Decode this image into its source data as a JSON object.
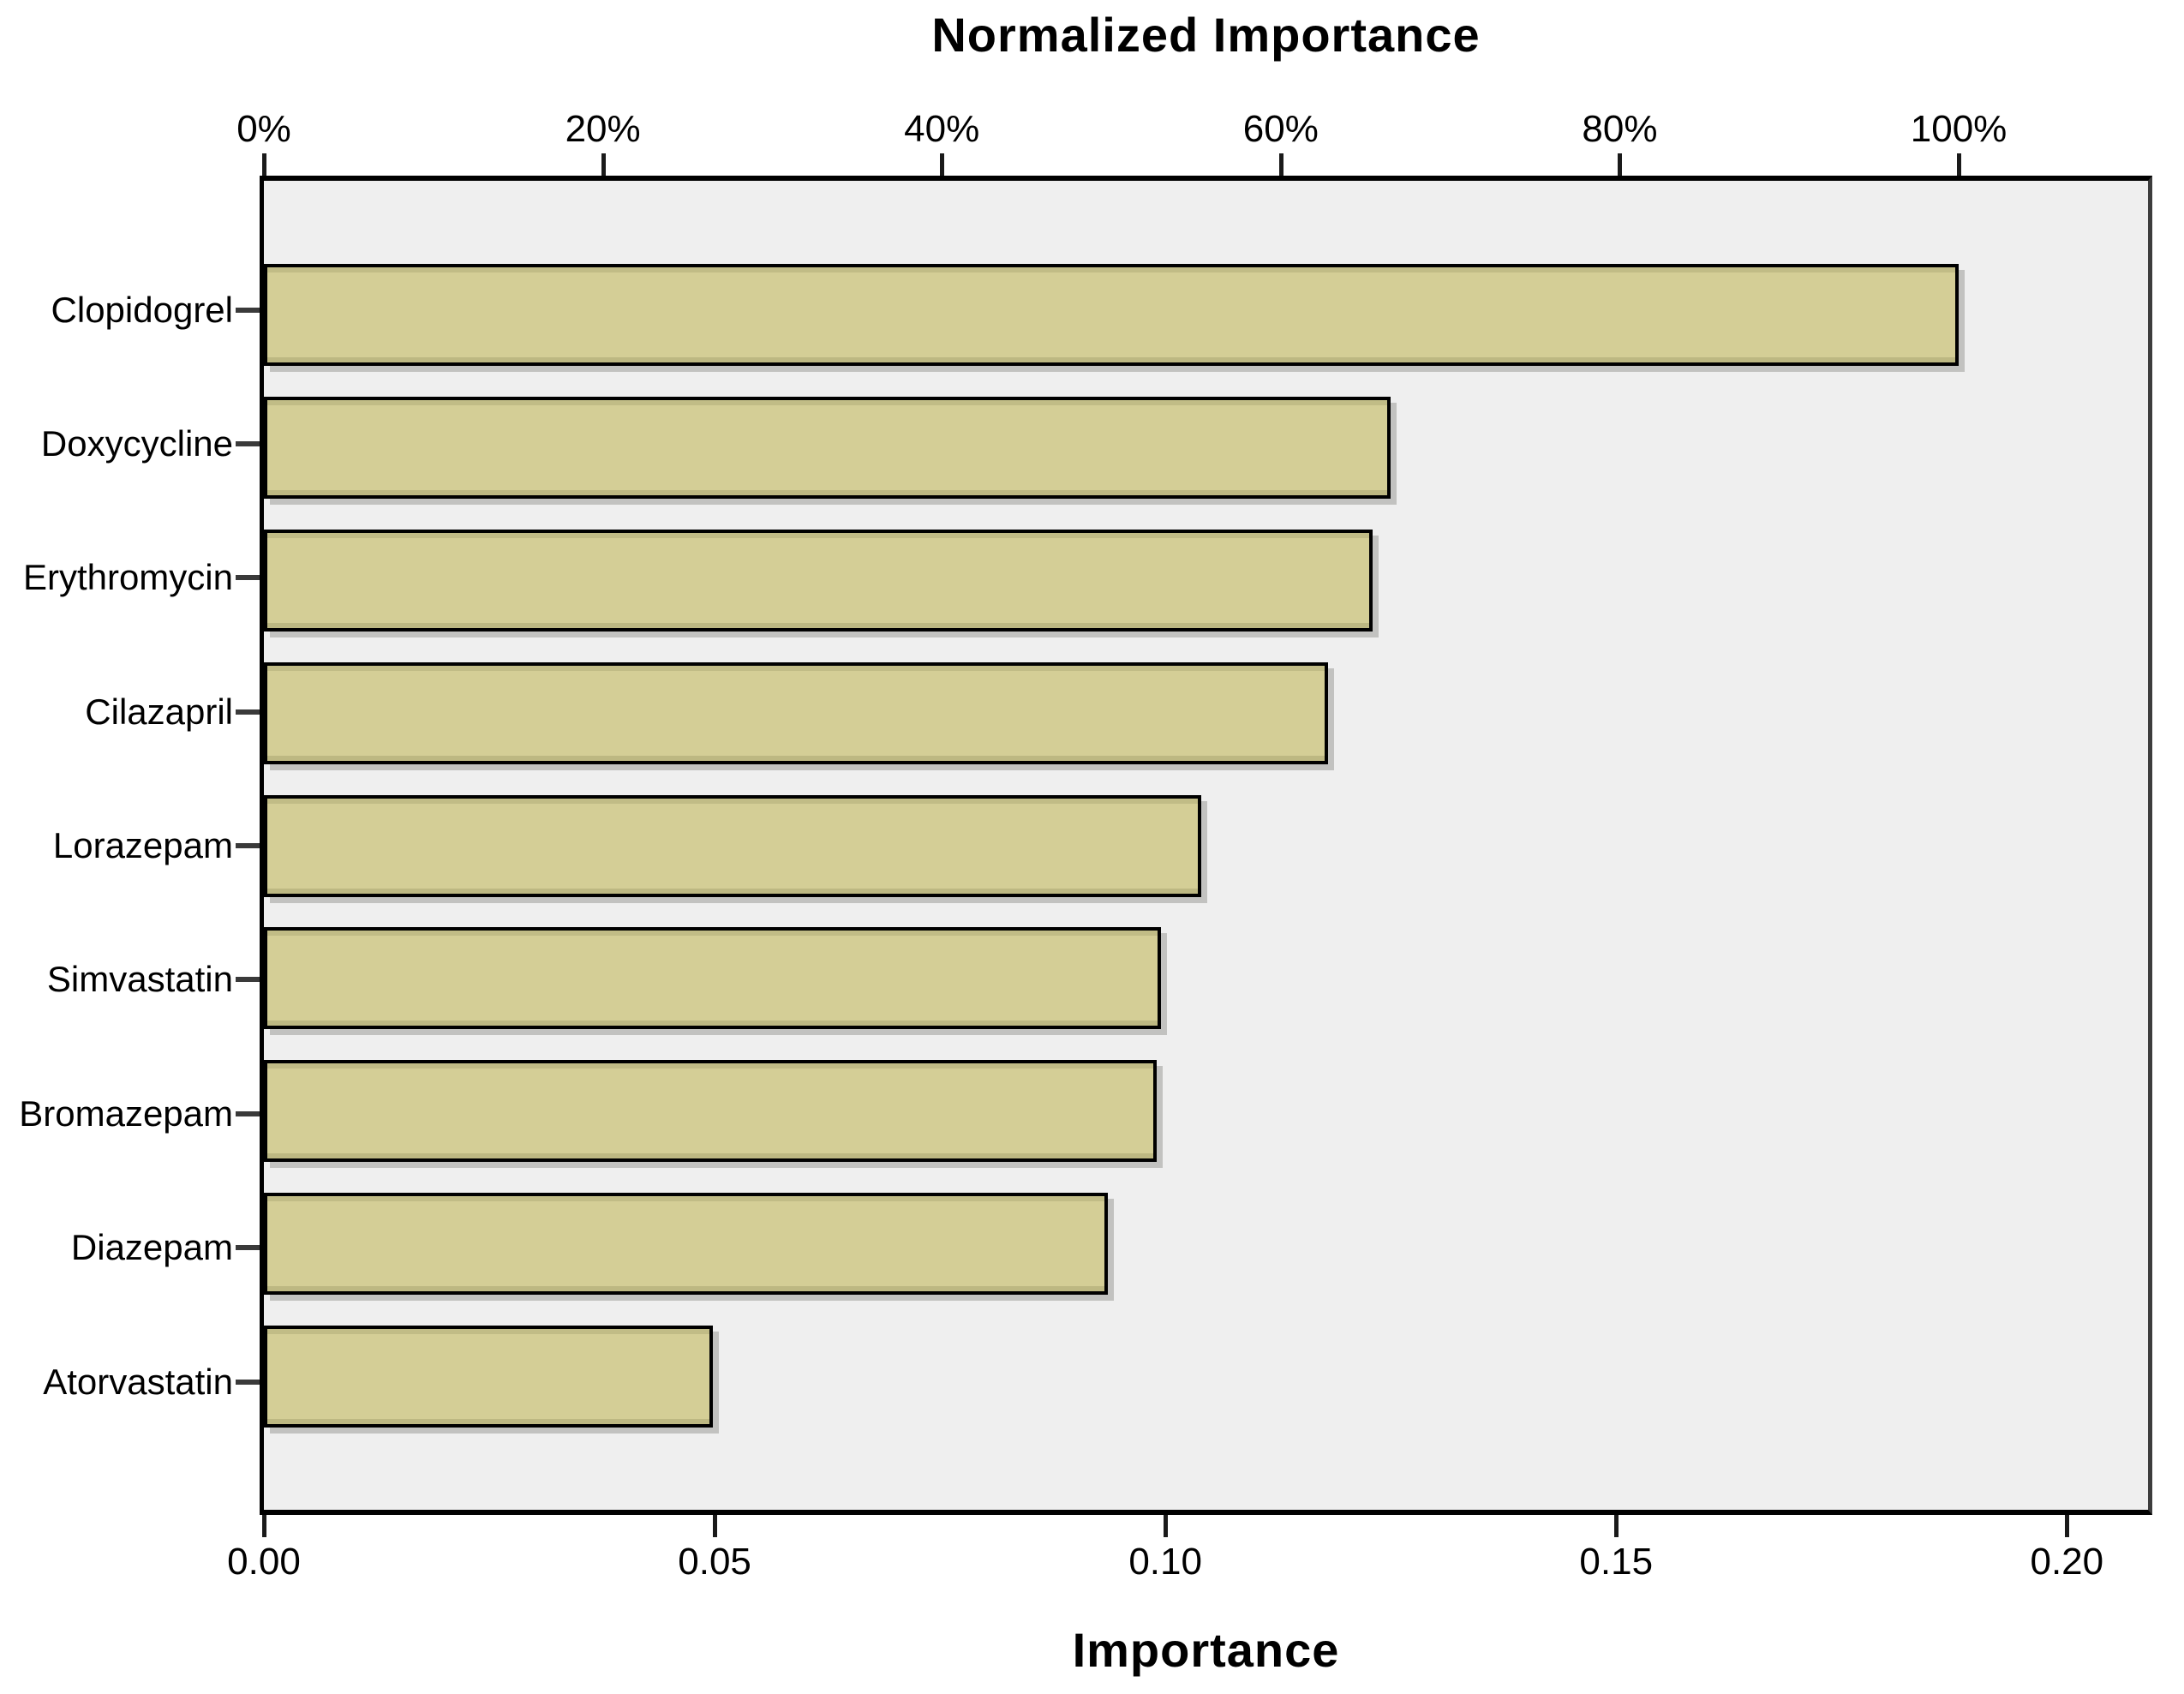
{
  "chart_data": {
    "type": "bar",
    "orientation": "horizontal",
    "title": "Normalized Importance",
    "xlabel": "Importance",
    "categories": [
      "Clopidogrel",
      "Doxycycline",
      "Erythromycin",
      "Cilazapril",
      "Lorazepam",
      "Simvastatin",
      "Bromazepam",
      "Diazepam",
      "Atorvastatin"
    ],
    "values": [
      0.188,
      0.125,
      0.123,
      0.118,
      0.104,
      0.0995,
      0.099,
      0.0936,
      0.0498
    ],
    "normalized_percent": [
      100,
      66.5,
      65.4,
      62.8,
      55.3,
      52.9,
      52.7,
      49.8,
      26.5
    ],
    "bottom_axis": {
      "label": "Importance",
      "tick_labels": [
        "0.00",
        "0.05",
        "0.10",
        "0.15",
        "0.20"
      ],
      "tick_values": [
        0,
        0.05,
        0.1,
        0.15,
        0.2
      ]
    },
    "top_axis": {
      "tick_labels": [
        "0%",
        "20%",
        "40%",
        "60%",
        "80%",
        "100%"
      ],
      "tick_values": [
        0,
        20,
        40,
        60,
        80,
        100
      ]
    },
    "xlim": [
      0,
      0.209
    ],
    "percent_100_importance": 0.188,
    "grid": false,
    "legend": false
  },
  "colors": {
    "bar_fill": "#d4ce96",
    "bar_border": "#000000",
    "plot_bg": "#efefef",
    "page_bg": "#ffffff",
    "text": "#000000"
  }
}
